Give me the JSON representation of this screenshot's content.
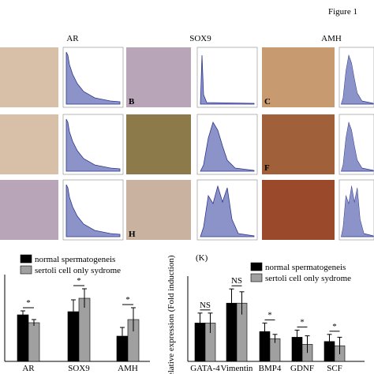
{
  "figure": {
    "title": "Figure 1",
    "column_titles": [
      "AR",
      "SOX9",
      "AMH"
    ],
    "panel_letters": [
      "B",
      "C",
      "F",
      "H"
    ]
  },
  "chart_data": [
    {
      "type": "bar",
      "categories": [
        "AR",
        "SOX9",
        "AMH"
      ],
      "series": [
        {
          "name": "normal spermatogeneis",
          "color": "#000000",
          "values": [
            5.9,
            6.3,
            3.2
          ],
          "errors": [
            0.5,
            1.5,
            1.1
          ]
        },
        {
          "name": "sertoli cell only sydrome",
          "color": "#a0a0a0",
          "values": [
            4.9,
            8.0,
            5.3
          ],
          "errors": [
            0.4,
            1.2,
            1.5
          ]
        }
      ],
      "ylim": [
        0,
        11
      ],
      "annotations": [
        "*",
        "*",
        "*"
      ]
    },
    {
      "type": "bar",
      "panel_label": "(K)",
      "y_label": "Relative expression (Fold induction)",
      "categories": [
        "GATA-4",
        "Vimentin",
        "BMP4",
        "GDNF",
        "SCF"
      ],
      "series": [
        {
          "name": "normal spermatogeneis",
          "color": "#000000",
          "values": [
            2.7,
            4.1,
            2.1,
            1.7,
            1.4
          ],
          "errors": [
            0.7,
            1.0,
            0.6,
            0.5,
            0.5
          ]
        },
        {
          "name": "sertoli cell only sydrome",
          "color": "#a0a0a0",
          "values": [
            2.7,
            4.1,
            1.6,
            1.2,
            1.1
          ],
          "errors": [
            0.7,
            0.8,
            0.3,
            0.6,
            0.6
          ]
        }
      ],
      "ylim": [
        0,
        6
      ],
      "annotations": [
        "NS",
        "NS",
        "*",
        "*",
        "*"
      ]
    }
  ]
}
